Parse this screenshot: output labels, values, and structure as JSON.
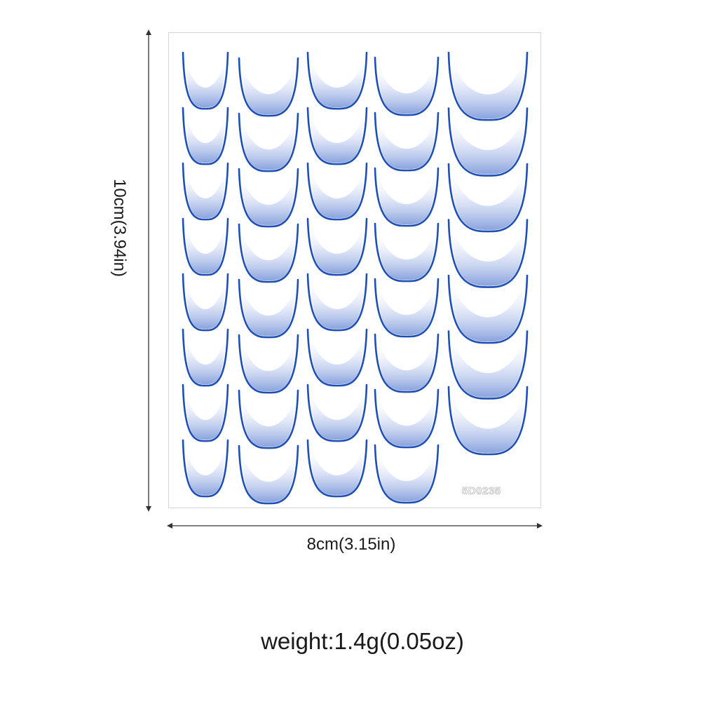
{
  "product": {
    "code": "5D0235",
    "height_label": "10cm(3.94in)",
    "width_label": "8cm(3.15in)",
    "weight_label": "weight:1.4g(0.05oz)"
  },
  "colors": {
    "stroke": "#1d4fb5",
    "fill": "#8da6e0",
    "sheet_border": "#d4d4d4",
    "text": "#1a1a1a"
  },
  "sticker_grid": {
    "columns": 5,
    "rows_per_column": [
      8,
      8,
      8,
      8,
      7
    ]
  }
}
